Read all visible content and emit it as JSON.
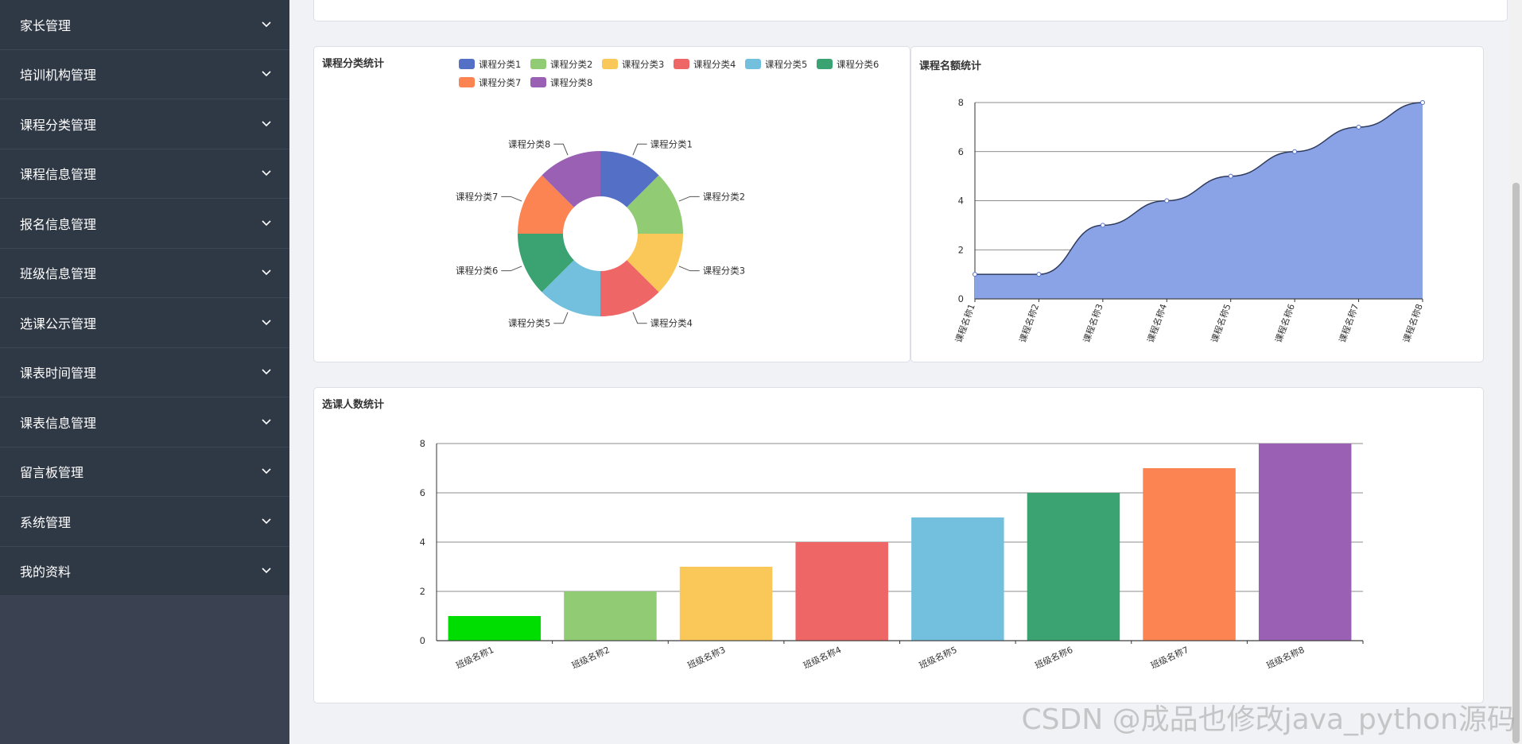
{
  "sidebar": {
    "items": [
      {
        "label": "家长管理"
      },
      {
        "label": "培训机构管理"
      },
      {
        "label": "课程分类管理"
      },
      {
        "label": "课程信息管理"
      },
      {
        "label": "报名信息管理"
      },
      {
        "label": "班级信息管理"
      },
      {
        "label": "选课公示管理"
      },
      {
        "label": "课表时间管理"
      },
      {
        "label": "课表信息管理"
      },
      {
        "label": "留言板管理"
      },
      {
        "label": "系统管理"
      },
      {
        "label": "我的资料"
      }
    ]
  },
  "colors": {
    "sidebar_bg": "#2f3845",
    "palette": [
      "#5470c6",
      "#91cc75",
      "#fac858",
      "#ee6666",
      "#73c0de",
      "#3ba272",
      "#fc8452",
      "#9a60b4"
    ],
    "bar_first": "#00dd00",
    "area_fill": "#8aa2e6"
  },
  "watermark": "CSDN @成品也修改java_python源码",
  "chart_data": [
    {
      "type": "pie",
      "title": "课程分类统计",
      "categories": [
        "课程分类1",
        "课程分类2",
        "课程分类3",
        "课程分类4",
        "课程分类5",
        "课程分类6",
        "课程分类7",
        "课程分类8"
      ],
      "values": [
        1,
        1,
        1,
        1,
        1,
        1,
        1,
        1
      ],
      "donut": true,
      "legend": "top"
    },
    {
      "type": "area",
      "title": "课程名额统计",
      "categories": [
        "课程名称1",
        "课程名称2",
        "课程名称3",
        "课程名称4",
        "课程名称5",
        "课程名称6",
        "课程名称7",
        "课程名称8"
      ],
      "values": [
        1,
        1,
        3,
        4,
        5,
        6,
        7,
        8
      ],
      "ylim": [
        0,
        8
      ],
      "yticks": [
        0,
        2,
        4,
        6,
        8
      ],
      "grid": true
    },
    {
      "type": "bar",
      "title": "选课人数统计",
      "categories": [
        "班级名称1",
        "班级名称2",
        "班级名称3",
        "班级名称4",
        "班级名称5",
        "班级名称6",
        "班级名称7",
        "班级名称8"
      ],
      "values": [
        1,
        2,
        3,
        4,
        5,
        6,
        7,
        8
      ],
      "ylim": [
        0,
        8
      ],
      "yticks": [
        0,
        2,
        4,
        6,
        8
      ],
      "grid": true
    }
  ]
}
